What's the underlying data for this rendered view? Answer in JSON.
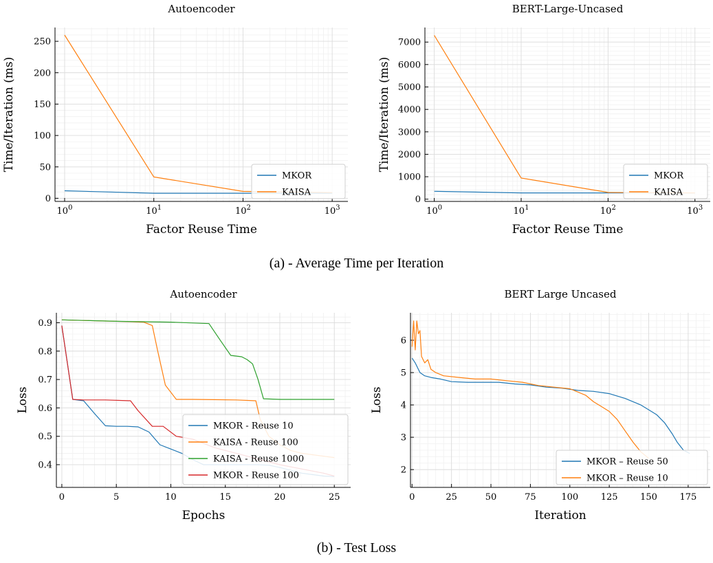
{
  "captions": {
    "top": "(a) - Average Time per Iteration",
    "bottom": "(b) - Test Loss"
  },
  "chart_data": [
    {
      "id": "a_left",
      "type": "line",
      "title": "Autoencoder",
      "xlabel": "Factor Reuse Time",
      "ylabel": "Time/Iteration (ms)",
      "xscale": "log",
      "xlim": [
        0.78,
        1500
      ],
      "ylim": [
        -5,
        272
      ],
      "xticks": [
        1,
        10,
        100,
        1000
      ],
      "xtick_labels": [
        "10^0",
        "10^1",
        "10^2",
        "10^3"
      ],
      "yticks": [
        0,
        50,
        100,
        150,
        200,
        250
      ],
      "ytick_labels": [
        "0",
        "50",
        "100",
        "150",
        "200",
        "250"
      ],
      "grid": true,
      "legend": "lower-right",
      "series": [
        {
          "name": "MKOR",
          "color": "#1f77b4",
          "x": [
            1,
            10,
            100,
            1000
          ],
          "y": [
            12,
            8,
            8,
            8
          ]
        },
        {
          "name": "KAISA",
          "color": "#ff7f0e",
          "x": [
            1,
            10,
            100,
            1000
          ],
          "y": [
            260,
            34,
            11,
            9
          ]
        }
      ]
    },
    {
      "id": "a_right",
      "type": "line",
      "title": "BERT-Large-Uncased",
      "xlabel": "Factor Reuse Time",
      "ylabel": "Time/Iteration (ms)",
      "xscale": "log",
      "xlim": [
        0.78,
        1500
      ],
      "ylim": [
        -100,
        7650
      ],
      "xticks": [
        1,
        10,
        100,
        1000
      ],
      "xtick_labels": [
        "10^0",
        "10^1",
        "10^2",
        "10^3"
      ],
      "yticks": [
        0,
        1000,
        2000,
        3000,
        4000,
        5000,
        6000,
        7000
      ],
      "ytick_labels": [
        "0",
        "1000",
        "2000",
        "3000",
        "4000",
        "5000",
        "6000",
        "7000"
      ],
      "grid": true,
      "legend": "lower-right",
      "series": [
        {
          "name": "MKOR",
          "color": "#1f77b4",
          "x": [
            1,
            10,
            100,
            1000
          ],
          "y": [
            350,
            280,
            280,
            280
          ]
        },
        {
          "name": "KAISA",
          "color": "#ff7f0e",
          "x": [
            1,
            10,
            100,
            1000
          ],
          "y": [
            7300,
            940,
            300,
            280
          ]
        }
      ]
    },
    {
      "id": "b_left",
      "type": "line",
      "title": "Autoencoder",
      "xlabel": "Epochs",
      "ylabel": "Loss",
      "xscale": "linear",
      "xlim": [
        -0.5,
        26.5
      ],
      "ylim": [
        0.32,
        0.935
      ],
      "xticks": [
        0,
        5,
        10,
        15,
        20,
        25
      ],
      "xtick_labels": [
        "0",
        "5",
        "10",
        "15",
        "20",
        "25"
      ],
      "yticks": [
        0.4,
        0.5,
        0.6,
        0.7,
        0.8,
        0.9
      ],
      "ytick_labels": [
        "0.4",
        "0.5",
        "0.6",
        "0.7",
        "0.8",
        "0.9"
      ],
      "grid": true,
      "legend": "lower-right",
      "series": [
        {
          "name": "MKOR - Reuse 10",
          "color": "#1f77b4",
          "x": [
            0,
            1,
            2,
            3,
            4,
            5,
            6,
            7,
            8,
            9,
            10,
            11,
            12,
            13,
            14,
            15,
            16,
            17,
            18,
            19,
            20,
            21,
            22,
            23,
            24,
            25
          ],
          "y": [
            0.89,
            0.63,
            0.625,
            0.58,
            0.537,
            0.535,
            0.535,
            0.533,
            0.515,
            0.47,
            0.455,
            0.44,
            0.418,
            0.4,
            0.4,
            0.4,
            0.4,
            0.4,
            0.4,
            0.398,
            0.39,
            0.38,
            0.37,
            0.365,
            0.36,
            0.358
          ]
        },
        {
          "name": "KAISA - Reuse 100",
          "color": "#ff7f0e",
          "x": [
            0,
            2,
            4,
            6,
            7.5,
            8.3,
            8.8,
            9.5,
            10.5,
            12,
            14,
            16,
            17.8,
            18.2,
            19,
            20,
            21,
            22,
            23,
            24,
            25
          ],
          "y": [
            0.91,
            0.908,
            0.906,
            0.904,
            0.902,
            0.89,
            0.8,
            0.68,
            0.63,
            0.63,
            0.629,
            0.628,
            0.625,
            0.56,
            0.5,
            0.47,
            0.45,
            0.44,
            0.435,
            0.43,
            0.425
          ]
        },
        {
          "name": "KAISA - Reuse 1000",
          "color": "#2ca02c",
          "x": [
            0,
            5,
            10,
            13.5,
            14.5,
            15.5,
            16.5,
            17,
            17.5,
            18,
            18.5,
            20,
            22,
            25
          ],
          "y": [
            0.91,
            0.905,
            0.902,
            0.897,
            0.84,
            0.785,
            0.78,
            0.77,
            0.755,
            0.7,
            0.632,
            0.63,
            0.63,
            0.63
          ]
        },
        {
          "name": "MKOR - Reuse 100",
          "color": "#d62728",
          "x": [
            0,
            1,
            2,
            4,
            6.3,
            7,
            8.3,
            9.3,
            10.5,
            12,
            13,
            14,
            16,
            18,
            20,
            22,
            24,
            25
          ],
          "y": [
            0.89,
            0.63,
            0.628,
            0.628,
            0.625,
            0.59,
            0.535,
            0.535,
            0.5,
            0.49,
            0.475,
            0.46,
            0.44,
            0.42,
            0.4,
            0.385,
            0.37,
            0.36
          ]
        }
      ]
    },
    {
      "id": "b_right",
      "type": "line",
      "title": "BERT Large Uncased",
      "xlabel": "Iteration",
      "ylabel": "Loss",
      "xscale": "linear",
      "xlim": [
        -1,
        189
      ],
      "ylim": [
        1.45,
        6.85
      ],
      "xticks": [
        0,
        25,
        50,
        75,
        100,
        125,
        150,
        175
      ],
      "xtick_labels": [
        "0",
        "25",
        "50",
        "75",
        "100",
        "125",
        "150",
        "175"
      ],
      "yticks": [
        2,
        3,
        4,
        5,
        6
      ],
      "ytick_labels": [
        "2",
        "3",
        "4",
        "5",
        "6"
      ],
      "grid": true,
      "legend": "lower-right",
      "series": [
        {
          "name": "MKOR – Reuse 50",
          "color": "#1f77b4",
          "x": [
            0,
            2,
            5,
            8,
            12,
            18,
            25,
            35,
            45,
            55,
            65,
            75,
            85,
            95,
            105,
            115,
            125,
            135,
            145,
            150,
            155,
            160,
            165,
            168,
            172,
            176
          ],
          "y": [
            5.45,
            5.3,
            5.0,
            4.9,
            4.85,
            4.8,
            4.72,
            4.7,
            4.7,
            4.7,
            4.65,
            4.62,
            4.55,
            4.52,
            4.45,
            4.42,
            4.35,
            4.2,
            4.0,
            3.85,
            3.7,
            3.45,
            3.1,
            2.85,
            2.6,
            2.5
          ]
        },
        {
          "name": "MKOR – Reuse 10",
          "color": "#ff7f0e",
          "x": [
            0,
            1,
            2,
            3,
            4,
            5,
            6,
            8,
            10,
            12,
            15,
            20,
            30,
            40,
            50,
            60,
            70,
            80,
            90,
            100,
            110,
            115,
            120,
            125,
            130,
            135,
            140,
            145,
            150
          ],
          "y": [
            5.8,
            6.6,
            5.7,
            6.6,
            6.2,
            6.3,
            5.5,
            5.3,
            5.4,
            5.1,
            5.0,
            4.9,
            4.85,
            4.8,
            4.8,
            4.75,
            4.7,
            4.6,
            4.55,
            4.5,
            4.3,
            4.1,
            3.95,
            3.8,
            3.55,
            3.2,
            2.85,
            2.55,
            2.35
          ]
        }
      ]
    }
  ]
}
